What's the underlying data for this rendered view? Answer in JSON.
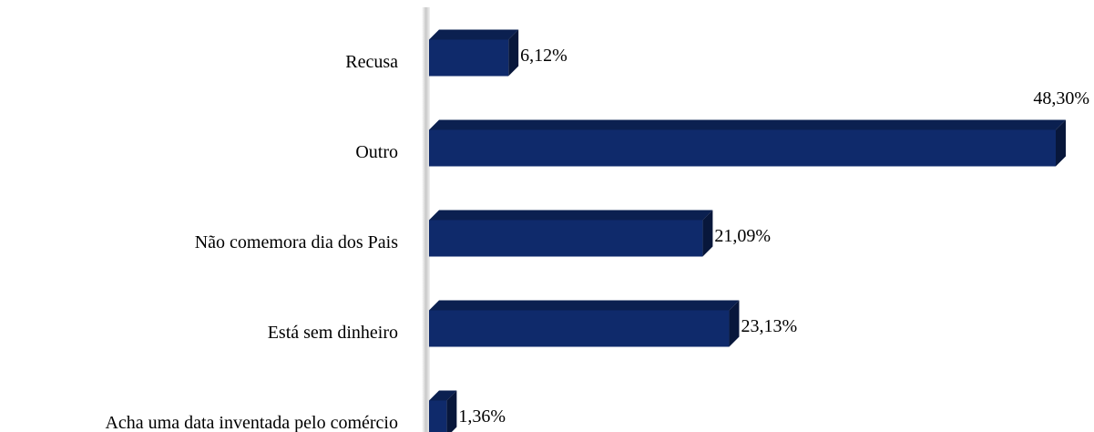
{
  "chart_data": {
    "type": "bar",
    "orientation": "horizontal",
    "categories": [
      "Recusa",
      "Outro",
      "Não comemora dia dos Pais",
      "Está sem dinheiro",
      "Acha uma data inventada pelo comércio"
    ],
    "values": [
      6.12,
      48.3,
      21.09,
      23.13,
      1.36
    ],
    "value_labels": [
      "6,12%",
      "48,30%",
      "21,09%",
      "23,13%",
      "1,36%"
    ],
    "color": "#0f2a6b"
  }
}
